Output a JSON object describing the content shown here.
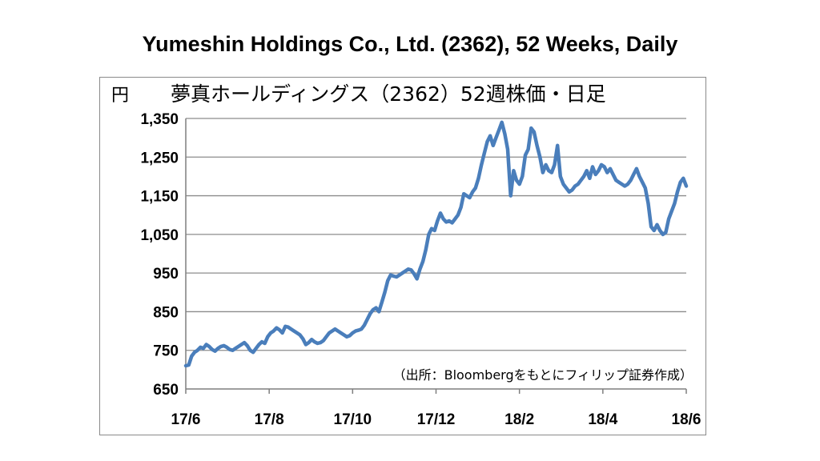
{
  "page": {
    "title": "Yumeshin Holdings Co., Ltd. (2362), 52 Weeks, Daily"
  },
  "chart_data": {
    "type": "line",
    "title": "夢真ホールディングス（2362）52週株価・日足",
    "unit_label": "円",
    "source_note": "（出所：Bloombergをもとにフィリップ証券作成）",
    "xlabel": "",
    "ylabel": "",
    "ylim": [
      650,
      1350
    ],
    "y_ticks": [
      "1,350",
      "1,250",
      "1,150",
      "1,050",
      "950",
      "850",
      "750",
      "650"
    ],
    "x_ticks": [
      "17/6",
      "17/8",
      "17/10",
      "17/12",
      "18/2",
      "18/4",
      "18/6"
    ],
    "grid": true,
    "line_color": "#4a7ebb",
    "series": [
      {
        "values": [
          710,
          712,
          735,
          745,
          750,
          758,
          755,
          765,
          760,
          752,
          748,
          755,
          760,
          762,
          758,
          752,
          750,
          755,
          760,
          765,
          770,
          762,
          750,
          745,
          755,
          765,
          772,
          768,
          785,
          795,
          800,
          808,
          803,
          795,
          812,
          810,
          805,
          800,
          795,
          790,
          780,
          765,
          770,
          778,
          772,
          768,
          770,
          775,
          785,
          795,
          800,
          805,
          800,
          795,
          790,
          785,
          788,
          795,
          800,
          802,
          805,
          815,
          830,
          845,
          855,
          860,
          850,
          875,
          900,
          930,
          945,
          942,
          940,
          945,
          950,
          955,
          960,
          958,
          948,
          935,
          960,
          980,
          1010,
          1050,
          1065,
          1060,
          1085,
          1105,
          1090,
          1082,
          1085,
          1080,
          1090,
          1100,
          1120,
          1155,
          1150,
          1145,
          1160,
          1170,
          1195,
          1230,
          1260,
          1290,
          1305,
          1280,
          1300,
          1320,
          1340,
          1310,
          1270,
          1150,
          1215,
          1190,
          1180,
          1200,
          1255,
          1270,
          1325,
          1315,
          1280,
          1250,
          1210,
          1230,
          1215,
          1210,
          1230,
          1280,
          1200,
          1180,
          1170,
          1160,
          1165,
          1175,
          1180,
          1190,
          1200,
          1215,
          1195,
          1225,
          1205,
          1215,
          1230,
          1225,
          1210,
          1220,
          1205,
          1190,
          1185,
          1180,
          1175,
          1180,
          1190,
          1205,
          1220,
          1200,
          1185,
          1170,
          1130,
          1070,
          1060,
          1075,
          1060,
          1050,
          1055,
          1090,
          1110,
          1130,
          1160,
          1185,
          1195,
          1175
        ]
      }
    ]
  }
}
